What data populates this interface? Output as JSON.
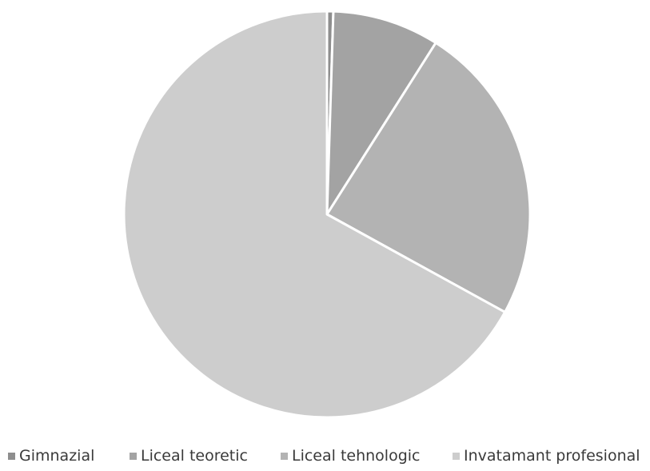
{
  "chart_data": {
    "type": "pie",
    "title": "",
    "categories": [
      "Gimnazial",
      "Liceal teoretic",
      "Liceal tehnologic",
      "Invatamant profesional"
    ],
    "values": [
      0.5,
      8.5,
      24.0,
      67.0
    ],
    "unit": "%",
    "colors": [
      "#8e8e8e",
      "#a3a3a3",
      "#b3b3b3",
      "#cdcdcd"
    ],
    "start_angle_deg": 0,
    "direction": "clockwise",
    "legend_position": "bottom",
    "data_labels_shown": false
  }
}
